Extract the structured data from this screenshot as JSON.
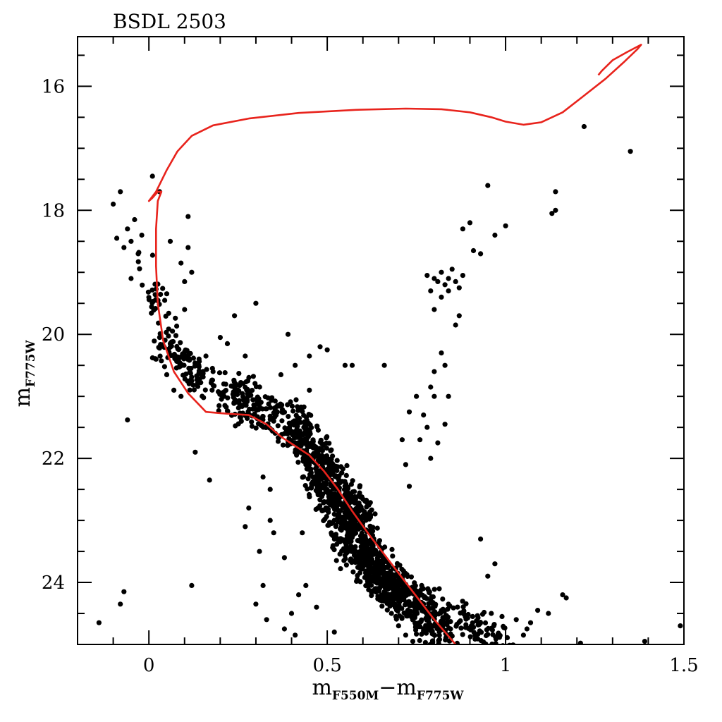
{
  "chart_data": {
    "type": "scatter",
    "title": "BSDL 2503",
    "xlabel": {
      "main": "m",
      "sub1": "F550M",
      "sep": "−m",
      "sub2": "F775W"
    },
    "ylabel": {
      "main": "m",
      "sub": "F775W"
    },
    "xlim": [
      -0.2,
      1.5
    ],
    "ylim": [
      25.0,
      15.2
    ],
    "y_inverted": true,
    "grid": false,
    "x_ticks": [
      0,
      0.5,
      1,
      1.5
    ],
    "x_tick_labels": [
      "0",
      "0.5",
      "1",
      "1.5"
    ],
    "y_ticks": [
      16,
      18,
      20,
      22,
      24
    ],
    "y_tick_labels": [
      "16",
      "18",
      "20",
      "22",
      "24"
    ],
    "series": [
      {
        "kind": "points",
        "color": "#000000",
        "points": [
          [
            -0.14,
            24.65
          ],
          [
            -0.08,
            24.35
          ],
          [
            -0.07,
            24.15
          ],
          [
            -0.06,
            21.38
          ],
          [
            -0.1,
            17.9
          ],
          [
            -0.08,
            17.7
          ],
          [
            -0.09,
            18.45
          ],
          [
            -0.07,
            18.6
          ],
          [
            -0.06,
            18.3
          ],
          [
            -0.05,
            18.5
          ],
          [
            -0.04,
            18.15
          ],
          [
            -0.03,
            18.7
          ],
          [
            -0.02,
            18.4
          ],
          [
            -0.05,
            19.1
          ],
          [
            0.01,
            17.45
          ],
          [
            0.03,
            17.7
          ],
          [
            0.06,
            18.5
          ],
          [
            0.09,
            18.85
          ],
          [
            0.1,
            19.15
          ],
          [
            0.1,
            19.6
          ],
          [
            0.11,
            18.1
          ],
          [
            0.12,
            19.0
          ],
          [
            0.11,
            18.6
          ],
          [
            0.12,
            24.05
          ],
          [
            0.13,
            21.9
          ],
          [
            0.17,
            22.35
          ],
          [
            0.22,
            20.15
          ],
          [
            0.24,
            19.7
          ],
          [
            0.27,
            20.35
          ],
          [
            0.3,
            19.5
          ],
          [
            0.31,
            23.5
          ],
          [
            0.3,
            24.35
          ],
          [
            0.32,
            24.05
          ],
          [
            0.32,
            22.3
          ],
          [
            0.34,
            23.0
          ],
          [
            0.35,
            23.2
          ],
          [
            0.4,
            24.5
          ],
          [
            0.41,
            24.85
          ],
          [
            0.44,
            24.05
          ],
          [
            0.38,
            24.75
          ],
          [
            0.36,
            21.25
          ],
          [
            0.37,
            20.65
          ],
          [
            0.39,
            20.0
          ],
          [
            0.41,
            20.5
          ],
          [
            0.45,
            20.9
          ],
          [
            0.48,
            20.2
          ],
          [
            0.5,
            20.25
          ],
          [
            0.55,
            20.5
          ],
          [
            0.57,
            20.5
          ],
          [
            0.66,
            20.5
          ],
          [
            0.75,
            21.0
          ],
          [
            0.73,
            21.25
          ],
          [
            0.71,
            21.7
          ],
          [
            0.72,
            22.1
          ],
          [
            0.73,
            22.45
          ],
          [
            0.78,
            19.05
          ],
          [
            0.79,
            19.3
          ],
          [
            0.8,
            19.1
          ],
          [
            0.8,
            19.6
          ],
          [
            0.81,
            19.15
          ],
          [
            0.82,
            19.0
          ],
          [
            0.83,
            19.2
          ],
          [
            0.82,
            19.4
          ],
          [
            0.84,
            19.1
          ],
          [
            0.85,
            18.95
          ],
          [
            0.84,
            19.3
          ],
          [
            0.86,
            19.15
          ],
          [
            0.87,
            19.25
          ],
          [
            0.88,
            19.05
          ],
          [
            0.87,
            19.7
          ],
          [
            0.86,
            19.85
          ],
          [
            0.88,
            18.3
          ],
          [
            0.9,
            18.2
          ],
          [
            0.91,
            18.65
          ],
          [
            0.93,
            18.7
          ],
          [
            0.95,
            17.6
          ],
          [
            0.97,
            18.4
          ],
          [
            1.0,
            18.25
          ],
          [
            0.82,
            20.3
          ],
          [
            0.83,
            20.5
          ],
          [
            0.84,
            21.0
          ],
          [
            0.83,
            21.45
          ],
          [
            0.81,
            21.75
          ],
          [
            0.8,
            21.0
          ],
          [
            0.79,
            20.85
          ],
          [
            0.8,
            20.6
          ],
          [
            0.77,
            21.3
          ],
          [
            0.76,
            21.7
          ],
          [
            0.79,
            22.0
          ],
          [
            0.78,
            21.5
          ],
          [
            1.14,
            17.7
          ],
          [
            1.14,
            18.0
          ],
          [
            1.13,
            18.05
          ],
          [
            1.22,
            16.65
          ],
          [
            1.35,
            17.05
          ],
          [
            1.16,
            24.2
          ],
          [
            1.17,
            24.25
          ],
          [
            1.12,
            24.5
          ],
          [
            1.09,
            24.45
          ],
          [
            1.07,
            24.65
          ],
          [
            0.95,
            23.9
          ],
          [
            0.93,
            23.3
          ],
          [
            0.97,
            23.7
          ],
          [
            1.03,
            24.6
          ],
          [
            1.06,
            24.75
          ],
          [
            1.05,
            24.85
          ],
          [
            0.99,
            24.55
          ],
          [
            0.96,
            24.5
          ],
          [
            1.49,
            24.7
          ],
          [
            1.39,
            24.95
          ],
          [
            1.21,
            24.98
          ],
          [
            0.45,
            20.35
          ],
          [
            0.27,
            23.1
          ],
          [
            0.34,
            22.5
          ],
          [
            0.28,
            22.8
          ],
          [
            0.38,
            23.6
          ],
          [
            0.43,
            23.2
          ],
          [
            0.47,
            24.4
          ],
          [
            0.42,
            24.2
          ],
          [
            0.52,
            24.8
          ],
          [
            0.33,
            24.6
          ],
          [
            0.2,
            20.05
          ],
          [
            0.16,
            20.35
          ],
          [
            0.06,
            20.15
          ],
          [
            0.02,
            20.4
          ],
          [
            0.03,
            20.05
          ],
          [
            0.05,
            20.65
          ],
          [
            0.07,
            20.9
          ],
          [
            0.09,
            21.0
          ],
          [
            0.12,
            20.75
          ],
          [
            0.14,
            20.5
          ],
          [
            0.18,
            20.6
          ],
          [
            0.21,
            20.8
          ],
          [
            0.25,
            20.9
          ],
          [
            0.27,
            21.1
          ],
          [
            0.3,
            21.05
          ],
          [
            0.33,
            21.2
          ],
          [
            0.35,
            21.4
          ],
          [
            0.38,
            21.6
          ],
          [
            0.4,
            21.75
          ],
          [
            0.42,
            21.9
          ],
          [
            0.44,
            22.1
          ],
          [
            0.46,
            22.3
          ],
          [
            0.48,
            22.5
          ],
          [
            0.5,
            22.7
          ],
          [
            0.52,
            22.9
          ],
          [
            0.54,
            23.1
          ],
          [
            0.56,
            23.3
          ],
          [
            0.58,
            23.5
          ],
          [
            0.6,
            23.7
          ],
          [
            0.62,
            23.9
          ],
          [
            0.64,
            24.1
          ],
          [
            0.66,
            24.3
          ],
          [
            0.68,
            24.5
          ],
          [
            0.7,
            24.7
          ],
          [
            0.72,
            24.85
          ],
          [
            0.74,
            24.95
          ]
        ]
      },
      {
        "kind": "scatter-cloud",
        "color": "#000000",
        "description_only_for_drawing": false,
        "regions": [
          {
            "x0": -0.02,
            "x1": 0.12,
            "y0": 18.8,
            "y1": 20.8,
            "n": 70
          },
          {
            "x0": 0.04,
            "x1": 0.3,
            "y0": 20.2,
            "y1": 21.4,
            "n": 140
          },
          {
            "x0": 0.25,
            "x1": 0.5,
            "y0": 20.8,
            "y1": 22.2,
            "n": 180
          },
          {
            "x0": 0.4,
            "x1": 0.62,
            "y0": 21.3,
            "y1": 23.2,
            "n": 330
          },
          {
            "x0": 0.45,
            "x1": 0.7,
            "y0": 22.2,
            "y1": 24.2,
            "n": 420
          },
          {
            "x0": 0.55,
            "x1": 0.85,
            "y0": 23.4,
            "y1": 25.0,
            "n": 380
          },
          {
            "x0": 0.7,
            "x1": 1.02,
            "y0": 24.0,
            "y1": 25.0,
            "n": 150
          }
        ]
      },
      {
        "kind": "isochrone",
        "color": "#e8231c",
        "points": [
          [
            0.86,
            25.0
          ],
          [
            0.8,
            24.6
          ],
          [
            0.74,
            24.15
          ],
          [
            0.68,
            23.7
          ],
          [
            0.62,
            23.25
          ],
          [
            0.57,
            22.85
          ],
          [
            0.53,
            22.5
          ],
          [
            0.49,
            22.2
          ],
          [
            0.45,
            21.95
          ],
          [
            0.41,
            21.8
          ],
          [
            0.37,
            21.65
          ],
          [
            0.33,
            21.45
          ],
          [
            0.28,
            21.3
          ],
          [
            0.22,
            21.28
          ],
          [
            0.16,
            21.25
          ],
          [
            0.11,
            20.95
          ],
          [
            0.07,
            20.6
          ],
          [
            0.04,
            20.1
          ],
          [
            0.025,
            19.5
          ],
          [
            0.02,
            18.9
          ],
          [
            0.02,
            18.3
          ],
          [
            0.025,
            17.85
          ],
          [
            0.035,
            17.7
          ],
          [
            0.025,
            17.7
          ],
          [
            0.01,
            17.8
          ],
          [
            0.0,
            17.85
          ],
          [
            0.02,
            17.7
          ],
          [
            0.05,
            17.35
          ],
          [
            0.08,
            17.05
          ],
          [
            0.12,
            16.8
          ],
          [
            0.18,
            16.63
          ],
          [
            0.28,
            16.52
          ],
          [
            0.42,
            16.43
          ],
          [
            0.58,
            16.38
          ],
          [
            0.72,
            16.36
          ],
          [
            0.82,
            16.37
          ],
          [
            0.9,
            16.42
          ],
          [
            0.96,
            16.5
          ],
          [
            1.0,
            16.57
          ],
          [
            1.05,
            16.62
          ],
          [
            1.1,
            16.58
          ],
          [
            1.16,
            16.42
          ],
          [
            1.22,
            16.15
          ],
          [
            1.28,
            15.88
          ],
          [
            1.33,
            15.62
          ],
          [
            1.37,
            15.4
          ],
          [
            1.38,
            15.33
          ],
          [
            1.34,
            15.45
          ],
          [
            1.3,
            15.58
          ],
          [
            1.27,
            15.75
          ],
          [
            1.26,
            15.82
          ]
        ]
      }
    ]
  }
}
